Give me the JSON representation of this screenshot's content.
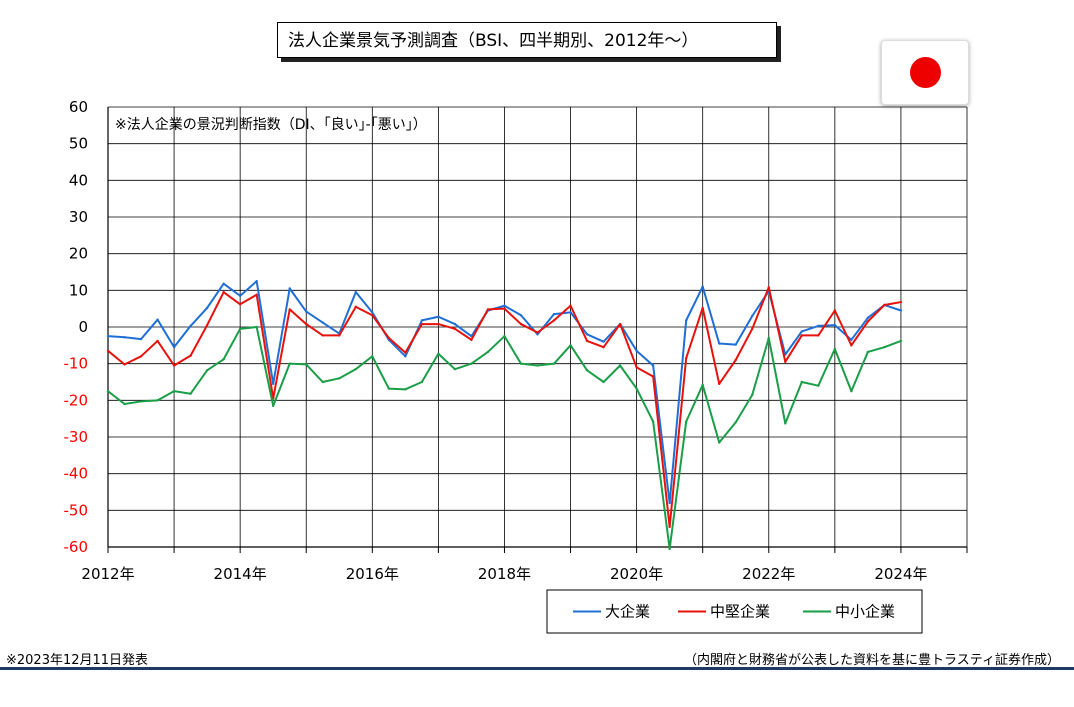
{
  "title": "法人企業景気予測調査（BSI、四半期別、2012年～）",
  "footer": {
    "release": "※2023年12月11日発表",
    "source": "（内閣府と財務省が公表した資料を基に豊トラスティ証券作成）"
  },
  "colors": {
    "flag_disc": "#ee0000",
    "footer_rule": "#1f3864",
    "grid": "#000000",
    "negative_tick": "#ff0000"
  },
  "icons": {
    "flag": "japan-flag-icon"
  },
  "chart_data": {
    "type": "line",
    "note": "※法人企業の景況判断指数（DI、｢良い｣-｢悪い｣）",
    "ylim": [
      -60,
      60
    ],
    "yticks": [
      60,
      50,
      40,
      30,
      20,
      10,
      0,
      -10,
      -20,
      -30,
      -40,
      -50,
      -60
    ],
    "xlim": [
      2012,
      2025
    ],
    "xtick_labels": [
      "2012年",
      "2014年",
      "2016年",
      "2018年",
      "2020年",
      "2022年",
      "2024年"
    ],
    "grid": true,
    "legend_position": "bottom-right",
    "x": [
      2012.0,
      2012.25,
      2012.5,
      2012.75,
      2013.0,
      2013.25,
      2013.5,
      2013.75,
      2014.0,
      2014.25,
      2014.5,
      2014.75,
      2015.0,
      2015.25,
      2015.5,
      2015.75,
      2016.0,
      2016.25,
      2016.5,
      2016.75,
      2017.0,
      2017.25,
      2017.5,
      2017.75,
      2018.0,
      2018.25,
      2018.5,
      2018.75,
      2019.0,
      2019.25,
      2019.5,
      2019.75,
      2020.0,
      2020.25,
      2020.5,
      2020.75,
      2021.0,
      2021.25,
      2021.5,
      2021.75,
      2022.0,
      2022.25,
      2022.5,
      2022.75,
      2023.0,
      2023.25,
      2023.5,
      2023.75,
      2024.0
    ],
    "series": [
      {
        "name": "大企業",
        "color": "#1f6fd6",
        "values": [
          -2.5,
          -2.8,
          -3.3,
          2.0,
          -5.5,
          0.3,
          5.2,
          11.8,
          8.5,
          12.5,
          -15.5,
          10.5,
          4.2,
          1.2,
          -1.8,
          9.5,
          4.0,
          -3.5,
          -8.0,
          1.8,
          2.8,
          0.8,
          -2.5,
          4.5,
          5.8,
          3.2,
          -2.0,
          3.5,
          4.0,
          -2.0,
          -4.0,
          0.8,
          -6.5,
          -10.5,
          -48.0,
          1.8,
          11.0,
          -4.5,
          -4.8,
          3.0,
          9.8,
          -7.5,
          -1.2,
          0.3,
          0.5,
          -3.5,
          2.5,
          6.0,
          4.5
        ]
      },
      {
        "name": "中堅企業",
        "color": "#e8120c",
        "values": [
          -6.5,
          -10.2,
          -8.0,
          -3.8,
          -10.5,
          -7.8,
          0.5,
          9.5,
          6.2,
          8.8,
          -19.5,
          4.8,
          0.8,
          -2.3,
          -2.3,
          5.5,
          3.2,
          -3.0,
          -7.0,
          0.8,
          0.8,
          -0.5,
          -3.5,
          4.8,
          5.0,
          0.8,
          -1.5,
          1.8,
          5.8,
          -3.8,
          -5.5,
          0.8,
          -11.0,
          -13.5,
          -54.5,
          -8.5,
          5.2,
          -15.5,
          -9.0,
          -0.5,
          10.8,
          -9.5,
          -2.3,
          -2.3,
          4.5,
          -5.0,
          1.5,
          6.0,
          6.8
        ]
      },
      {
        "name": "中小企業",
        "color": "#1a9e48",
        "values": [
          -17.5,
          -21.0,
          -20.3,
          -20.0,
          -17.5,
          -18.2,
          -11.8,
          -8.8,
          -0.5,
          0.0,
          -21.5,
          -10.0,
          -10.2,
          -15.0,
          -14.0,
          -11.5,
          -8.0,
          -16.8,
          -17.0,
          -15.0,
          -7.3,
          -11.5,
          -10.0,
          -6.8,
          -2.5,
          -10.0,
          -10.5,
          -10.0,
          -5.0,
          -11.8,
          -15.0,
          -10.5,
          -16.8,
          -25.8,
          -60.5,
          -25.8,
          -15.8,
          -31.5,
          -26.0,
          -18.5,
          -3.0,
          -26.3,
          -15.0,
          -16.0,
          -6.0,
          -17.5,
          -6.8,
          -5.5,
          -3.8
        ]
      }
    ]
  }
}
